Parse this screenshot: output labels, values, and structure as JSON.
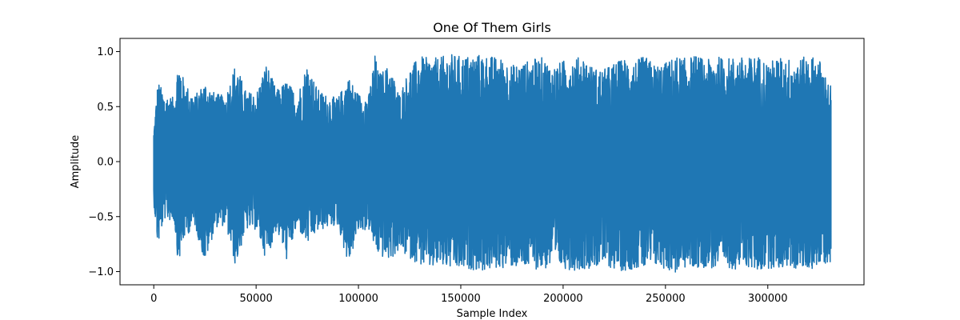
{
  "chart_data": {
    "type": "line",
    "title": "One Of Them Girls",
    "xlabel": "Sample Index",
    "ylabel": "Amplitude",
    "xlim": [
      -16500,
      347000
    ],
    "ylim": [
      -1.12,
      1.12
    ],
    "grid": false,
    "legend": "none",
    "x_ticks": [
      0,
      50000,
      100000,
      150000,
      200000,
      250000,
      300000
    ],
    "x_tick_labels": [
      "0",
      "50000",
      "100000",
      "150000",
      "200000",
      "250000",
      "300000"
    ],
    "y_ticks": [
      -1.0,
      -0.5,
      0.0,
      0.5,
      1.0
    ],
    "y_tick_labels": [
      "−1.0",
      "−0.5",
      "0.0",
      "0.5",
      "1.0"
    ],
    "series": [
      {
        "color": "#1f77b4",
        "n_samples": 331000,
        "envelope": {
          "x": [
            0,
            2000,
            5000,
            10000,
            12000,
            15000,
            20000,
            25000,
            30000,
            35000,
            40000,
            45000,
            50000,
            55000,
            60000,
            65000,
            70000,
            75000,
            80000,
            85000,
            90000,
            95000,
            100000,
            105000,
            108000,
            110000,
            115000,
            120000,
            125000,
            130000,
            135000,
            140000,
            145000,
            150000,
            155000,
            160000,
            165000,
            170000,
            175000,
            180000,
            185000,
            190000,
            195000,
            200000,
            205000,
            210000,
            215000,
            220000,
            225000,
            230000,
            235000,
            240000,
            245000,
            250000,
            255000,
            260000,
            265000,
            270000,
            275000,
            280000,
            285000,
            290000,
            295000,
            300000,
            305000,
            310000,
            315000,
            320000,
            325000,
            330000
          ],
          "max": [
            0.28,
            0.74,
            0.62,
            0.58,
            0.94,
            0.72,
            0.6,
            0.73,
            0.62,
            0.6,
            0.9,
            0.64,
            0.62,
            0.9,
            0.65,
            0.74,
            0.6,
            0.9,
            0.66,
            0.6,
            0.58,
            0.78,
            0.62,
            0.6,
            0.98,
            0.8,
            0.88,
            0.62,
            0.85,
            0.96,
            0.94,
            0.95,
            0.98,
            0.96,
            0.97,
            0.98,
            0.96,
            0.94,
            0.88,
            0.9,
            0.93,
            0.95,
            0.86,
            0.92,
            0.94,
            0.96,
            0.85,
            0.84,
            0.9,
            0.94,
            0.92,
            0.96,
            0.88,
            0.9,
            0.96,
            0.94,
            0.97,
            0.92,
            0.96,
            0.94,
            0.96,
            0.94,
            0.97,
            0.9,
            0.95,
            0.94,
            0.93,
            0.97,
            0.94,
            0.7
          ],
          "min": [
            -0.38,
            -0.78,
            -0.52,
            -0.55,
            -0.94,
            -0.7,
            -0.58,
            -0.93,
            -0.6,
            -0.58,
            -0.96,
            -0.62,
            -0.62,
            -0.9,
            -0.62,
            -0.9,
            -0.6,
            -0.76,
            -0.64,
            -0.6,
            -0.58,
            -0.95,
            -0.64,
            -0.62,
            -0.8,
            -0.86,
            -0.9,
            -0.82,
            -0.88,
            -0.94,
            -0.98,
            -0.96,
            -0.98,
            -1.0,
            -0.98,
            -1.0,
            -0.99,
            -0.97,
            -0.96,
            -0.98,
            -0.97,
            -0.99,
            -0.96,
            -0.97,
            -0.99,
            -0.98,
            -0.96,
            -0.95,
            -0.98,
            -1.0,
            -0.97,
            -0.99,
            -0.96,
            -0.98,
            -1.02,
            -0.97,
            -0.98,
            -0.96,
            -0.99,
            -0.97,
            -0.98,
            -0.96,
            -1.01,
            -0.97,
            -0.98,
            -0.96,
            -0.99,
            -0.98,
            -0.96,
            -0.92
          ]
        }
      }
    ]
  }
}
